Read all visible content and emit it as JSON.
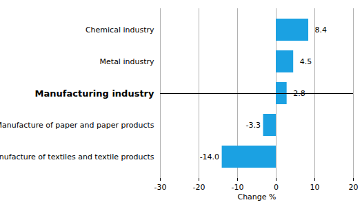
{
  "chart_data": {
    "type": "bar",
    "orientation": "horizontal",
    "categories": [
      "Chemical industry",
      "Metal industry",
      "Manufacturing industry",
      "Manufacture of paper and paper products",
      "Manufacture of textiles and textile products"
    ],
    "values": [
      8.4,
      4.5,
      2.8,
      -3.3,
      -14.0
    ],
    "value_labels": [
      "8.4",
      "4.5",
      "2.8",
      "-3.3",
      "-14.0"
    ],
    "data_labels": true,
    "color": "#1ba1e2",
    "xlabel": "Change %",
    "xlim": [
      -30,
      20
    ],
    "xticks": [
      -30,
      -20,
      -10,
      0,
      10,
      20
    ],
    "grid": true
  }
}
